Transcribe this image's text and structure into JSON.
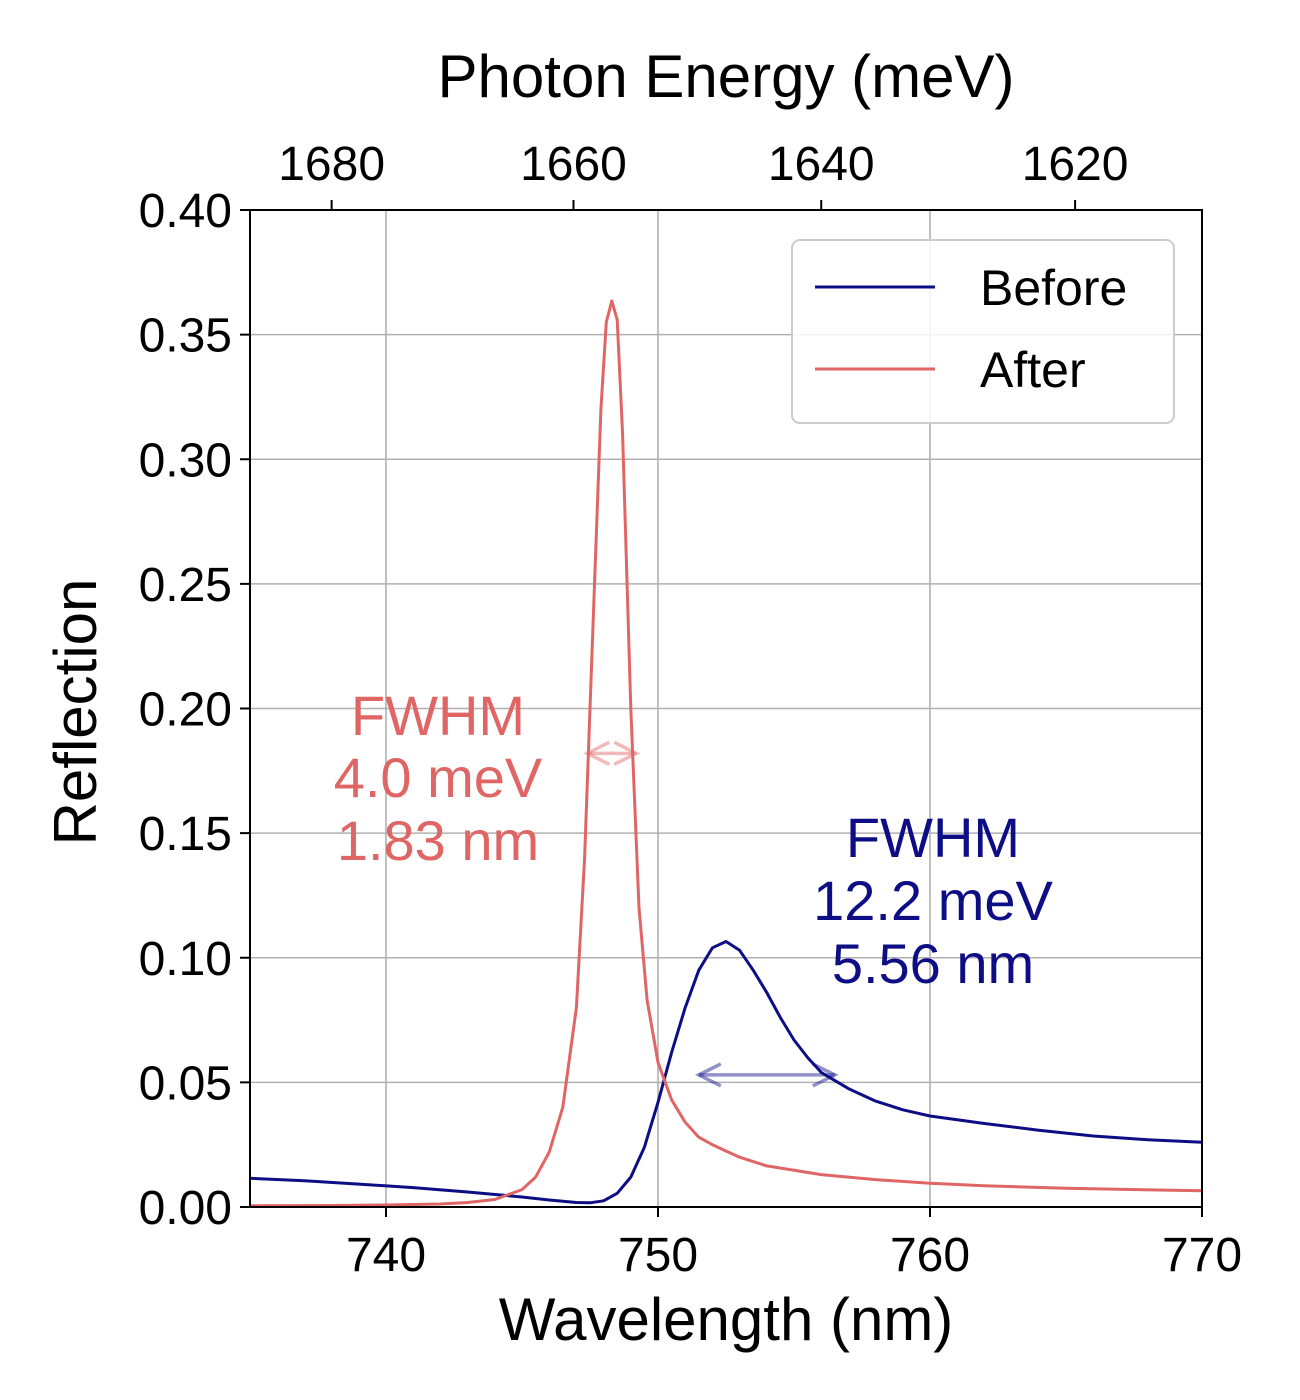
{
  "chart_data": {
    "type": "line",
    "xlabel": "Wavelength (nm)",
    "ylabel": "Reflection",
    "top_xlabel": "Photon Energy (meV)",
    "xlim": [
      735,
      770
    ],
    "ylim": [
      0,
      0.4
    ],
    "x_ticks": [
      740,
      750,
      760,
      770
    ],
    "x_tick_labels": [
      "740",
      "750",
      "760",
      "770"
    ],
    "y_ticks": [
      0.0,
      0.05,
      0.1,
      0.15,
      0.2,
      0.25,
      0.3,
      0.35,
      0.4
    ],
    "y_tick_labels": [
      "0.00",
      "0.05",
      "0.10",
      "0.15",
      "0.20",
      "0.25",
      "0.30",
      "0.35",
      "0.40"
    ],
    "top_x_ticks_meV": [
      1680,
      1660,
      1640,
      1620
    ],
    "top_x_tick_labels": [
      "1680",
      "1660",
      "1640",
      "1620"
    ],
    "grid": true,
    "legend_position": "top-right",
    "series": [
      {
        "name": "Before",
        "color": "#0d0d85",
        "x": [
          735,
          737,
          739,
          741,
          743,
          745,
          746,
          747,
          747.5,
          748,
          748.5,
          749,
          749.5,
          750,
          750.5,
          751,
          751.5,
          752,
          752.5,
          753,
          753.5,
          754,
          754.5,
          755,
          755.5,
          756,
          757,
          758,
          759,
          760,
          762,
          764,
          766,
          768,
          770
        ],
        "y": [
          0.0115,
          0.0105,
          0.0092,
          0.0078,
          0.006,
          0.004,
          0.0028,
          0.0018,
          0.0017,
          0.0025,
          0.0055,
          0.012,
          0.024,
          0.042,
          0.062,
          0.08,
          0.095,
          0.104,
          0.1065,
          0.103,
          0.095,
          0.086,
          0.076,
          0.067,
          0.06,
          0.054,
          0.0475,
          0.0425,
          0.039,
          0.0365,
          0.0335,
          0.0308,
          0.0285,
          0.027,
          0.026
        ]
      },
      {
        "name": "After",
        "color": "#e06666",
        "x": [
          735,
          738,
          740,
          742,
          743,
          744,
          745,
          745.5,
          746,
          746.5,
          747,
          747.3,
          747.6,
          747.9,
          748.1,
          748.3,
          748.5,
          748.7,
          749,
          749.3,
          749.6,
          750,
          750.5,
          751,
          751.5,
          752,
          753,
          754,
          756,
          758,
          760,
          762,
          765,
          770
        ],
        "y": [
          0.0005,
          0.0006,
          0.0008,
          0.0012,
          0.0018,
          0.003,
          0.007,
          0.012,
          0.022,
          0.04,
          0.08,
          0.14,
          0.23,
          0.32,
          0.355,
          0.3635,
          0.356,
          0.31,
          0.2,
          0.12,
          0.083,
          0.058,
          0.043,
          0.034,
          0.028,
          0.025,
          0.02,
          0.0165,
          0.013,
          0.011,
          0.0095,
          0.0085,
          0.0075,
          0.0065
        ]
      }
    ],
    "annotations": [
      {
        "id": "after",
        "lines": [
          "FWHM",
          "4.0 meV",
          "1.83 nm"
        ],
        "color": "#e06666",
        "arrow": {
          "x_start": 747.4,
          "x_end": 749.2,
          "y": 0.182
        }
      },
      {
        "id": "before",
        "lines": [
          "FWHM",
          "12.2 meV",
          "5.56 nm"
        ],
        "color": "#0d0d85",
        "arrow": {
          "x_start": 751.5,
          "x_end": 756.5,
          "y": 0.053
        }
      }
    ]
  }
}
